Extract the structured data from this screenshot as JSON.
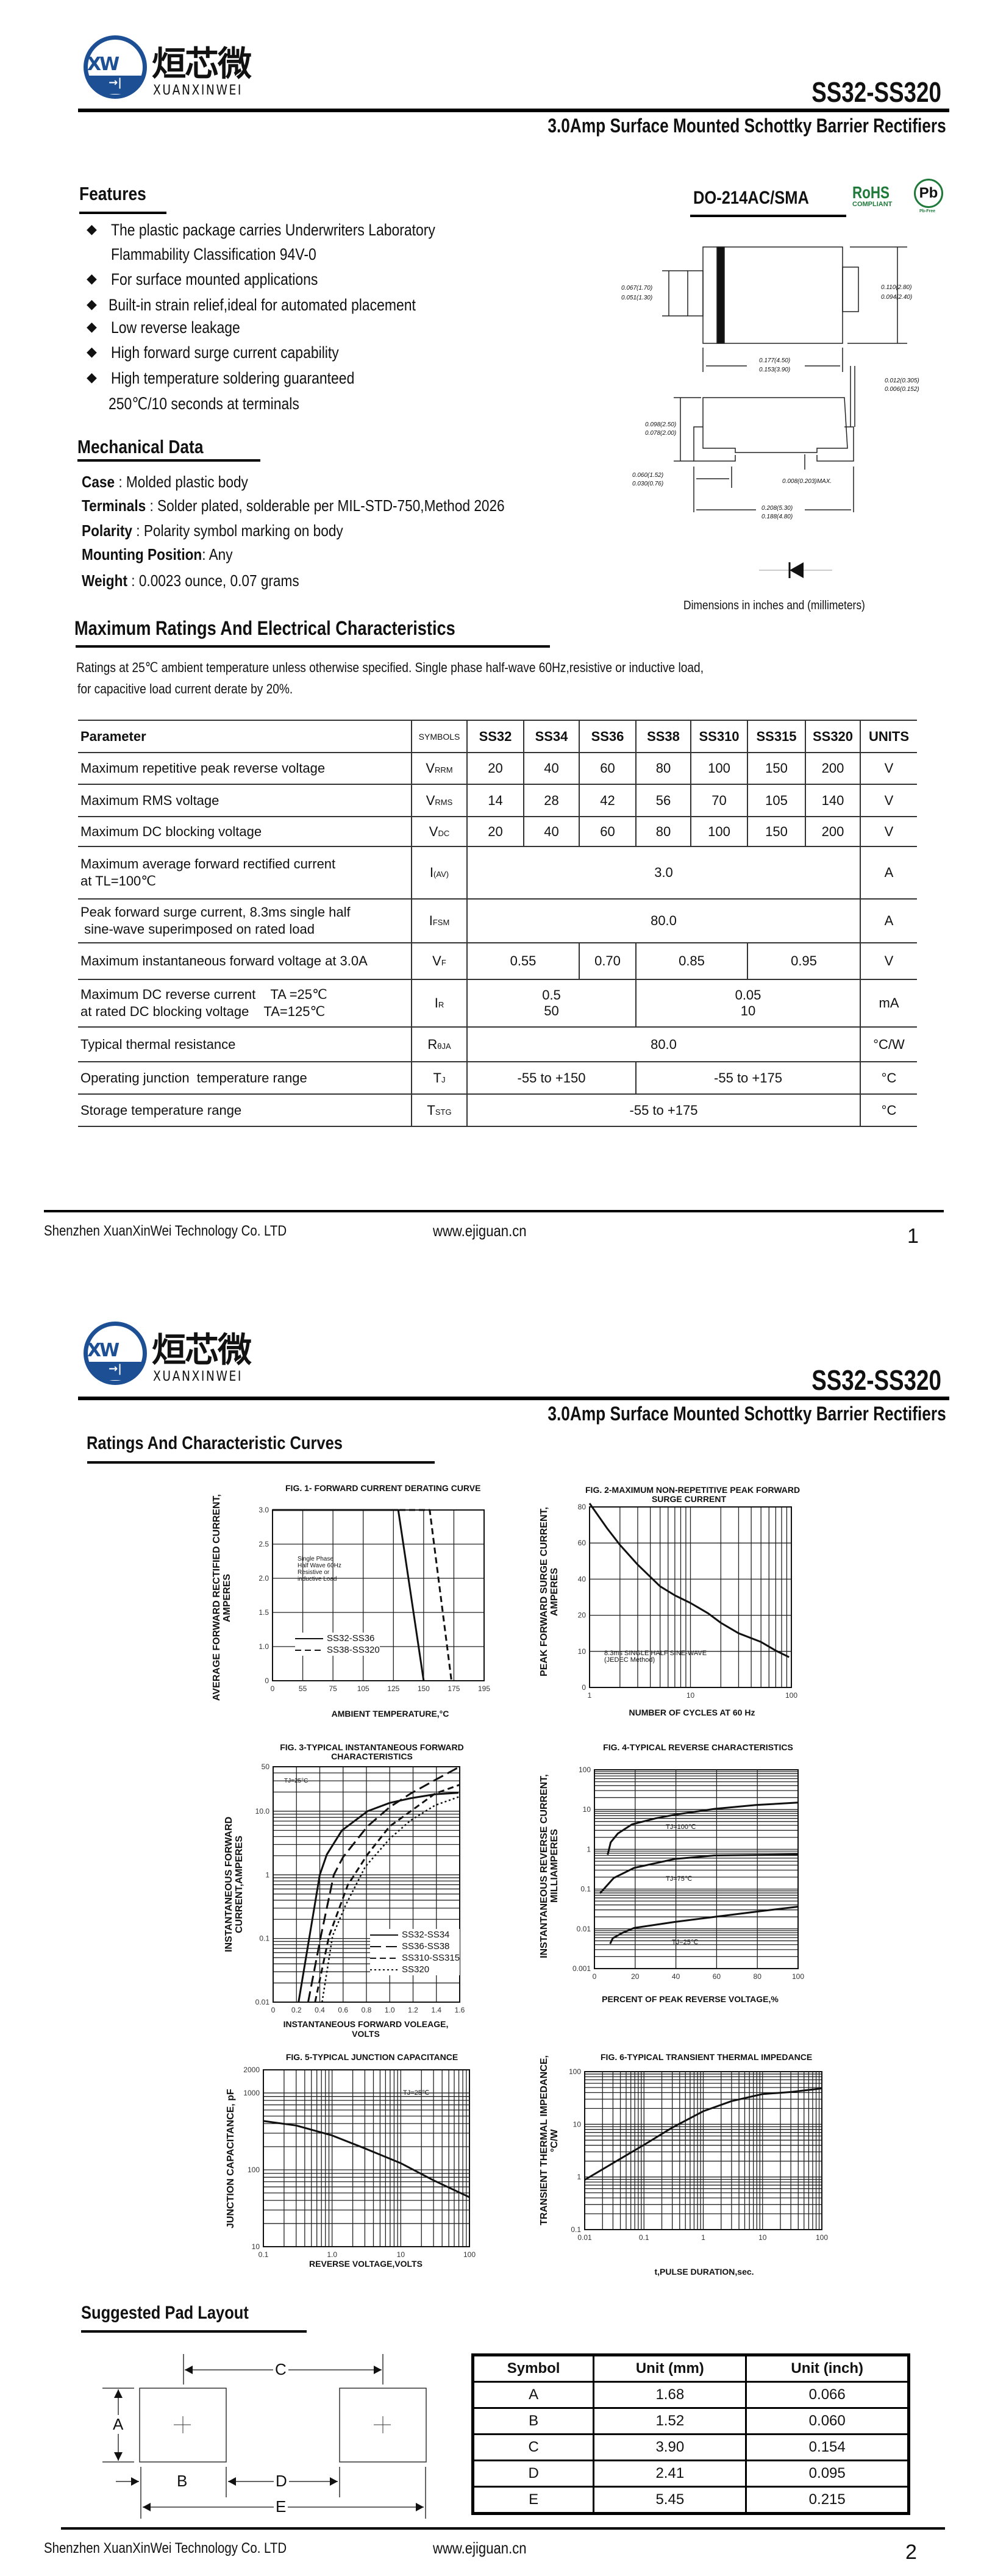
{
  "logo": {
    "cn": "烜芯微",
    "en": "XUANXINWEI",
    "mark": "XW"
  },
  "header": {
    "model": "SS32-SS320",
    "subtitle": "3.0Amp Surface Mounted Schottky Barrier Rectifiers"
  },
  "features": {
    "title": "Features",
    "items": [
      "The plastic package carries Underwriters Laboratory",
      "Flammability Classification 94V-0",
      "For surface mounted applications",
      "Built-in strain relief,ideal for automated placement",
      "Low reverse leakage",
      "High forward surge current capability",
      "High temperature soldering guaranteed",
      "250℃/10 seconds at terminals"
    ]
  },
  "mechanical": {
    "title": "Mechanical  Data",
    "items": [
      {
        "label": "Case",
        "value": " : Molded plastic body"
      },
      {
        "label": "Terminals",
        "value": " : Solder plated, solderable per MIL-STD-750,Method 2026"
      },
      {
        "label": "Polarity",
        "value": " : Polarity symbol  marking on body"
      },
      {
        "label": "Mounting Position",
        "value": ": Any"
      },
      {
        "label": "Weight",
        "value": " : 0.0023 ounce, 0.07 grams"
      }
    ]
  },
  "package": {
    "name": "DO-214AC/SMA",
    "rohs": "RoHS",
    "rohs_sub": "COMPLIANT",
    "pb": "Pb",
    "pb_sub": "Pb-Free",
    "dims": {
      "lead_h_max": "0.067(1.70)",
      "lead_h_min": "0.051(1.30)",
      "body_h_max": "0.110(2.80)",
      "body_h_min": "0.094(2.40)",
      "body_w_max": "0.177(4.50)",
      "body_w_min": "0.153(3.90)",
      "lead_t_max": "0.012(0.305)",
      "lead_t_min": "0.006(0.152)",
      "height_max": "0.098(2.50)",
      "height_min": "0.078(2.00)",
      "foot_max": "0.060(1.52)",
      "foot_min": "0.030(0.76)",
      "standoff": "0.008(0.203)MAX.",
      "total_max": "0.208(5.30)",
      "total_min": "0.188(4.80)"
    },
    "dims_note": "Dimensions in inches and (millimeters)"
  },
  "ratings": {
    "title": "Maximum Ratings And Electrical Characteristics",
    "note1": "Ratings at 25℃ ambient temperature unless otherwise specified. Single phase half-wave 60Hz,resistive or inductive load,",
    "note2": "for capacitive load current derate by 20%.",
    "headers": [
      "Parameter",
      "SYMBOLS",
      "SS32",
      "SS34",
      "SS36",
      "SS38",
      "SS310",
      "SS315",
      "SS320",
      "UNITS"
    ],
    "rows": [
      {
        "param": [
          "Maximum repetitive peak reverse voltage"
        ],
        "sym": "V",
        "sub": "RRM",
        "cells": [
          {
            "t": "20",
            "s": 1
          },
          {
            "t": "40",
            "s": 1
          },
          {
            "t": "60",
            "s": 1
          },
          {
            "t": "80",
            "s": 1
          },
          {
            "t": "100",
            "s": 1
          },
          {
            "t": "150",
            "s": 1
          },
          {
            "t": "200",
            "s": 1
          }
        ],
        "unit": "V"
      },
      {
        "param": [
          "Maximum RMS voltage"
        ],
        "sym": "V",
        "sub": "RMS",
        "cells": [
          {
            "t": "14",
            "s": 1
          },
          {
            "t": "28",
            "s": 1
          },
          {
            "t": "42",
            "s": 1
          },
          {
            "t": "56",
            "s": 1
          },
          {
            "t": "70",
            "s": 1
          },
          {
            "t": "105",
            "s": 1
          },
          {
            "t": "140",
            "s": 1
          }
        ],
        "unit": "V"
      },
      {
        "param": [
          "Maximum DC blocking voltage"
        ],
        "sym": "V",
        "sub": "DC",
        "cells": [
          {
            "t": "20",
            "s": 1
          },
          {
            "t": "40",
            "s": 1
          },
          {
            "t": "60",
            "s": 1
          },
          {
            "t": "80",
            "s": 1
          },
          {
            "t": "100",
            "s": 1
          },
          {
            "t": "150",
            "s": 1
          },
          {
            "t": "200",
            "s": 1
          }
        ],
        "unit": "V"
      },
      {
        "param": [
          "Maximum average forward rectified current",
          "at TL=100℃"
        ],
        "sym": "I",
        "sub": "(AV)",
        "cells": [
          {
            "t": "3.0",
            "s": 7
          }
        ],
        "unit": "A"
      },
      {
        "param": [
          "Peak forward surge current, 8.3ms single half",
          " sine-wave superimposed on rated load"
        ],
        "sym": "I",
        "sub": "FSM",
        "cells": [
          {
            "t": "80.0",
            "s": 7
          }
        ],
        "unit": "A"
      },
      {
        "param": [
          "Maximum instantaneous forward voltage at 3.0A"
        ],
        "sym": "V",
        "sub": "F",
        "cells": [
          {
            "t": "0.55",
            "s": 2
          },
          {
            "t": "0.70",
            "s": 1
          },
          {
            "t": "0.85",
            "s": 2
          },
          {
            "t": "0.95",
            "s": 2
          }
        ],
        "unit": "V"
      },
      {
        "param": [
          "Maximum DC reverse current    TA =25℃",
          "at rated DC blocking voltage    TA=125℃"
        ],
        "sym": "I",
        "sub": "R",
        "cells": [
          {
            "t": "0.5\n50",
            "s": 3
          },
          {
            "t": "0.05\n10",
            "s": 4
          }
        ],
        "unit": "mA"
      },
      {
        "param": [
          "Typical thermal resistance"
        ],
        "sym": "R",
        "sub": "θJA",
        "cells": [
          {
            "t": "80.0",
            "s": 7
          }
        ],
        "unit": "°C/W"
      },
      {
        "param": [
          "Operating junction  temperature range"
        ],
        "sym": "T",
        "sub": "J",
        "cells": [
          {
            "t": "-55 to +150",
            "s": 3
          },
          {
            "t": "-55 to +175",
            "s": 4
          }
        ],
        "unit": "°C"
      },
      {
        "param": [
          "Storage temperature range"
        ],
        "sym": "T",
        "sub": "STG",
        "cells": [
          {
            "t": "-55 to +175",
            "s": 7
          }
        ],
        "unit": "°C"
      }
    ]
  },
  "footer": {
    "company": "Shenzhen XuanXinWei Technology Co. LTD",
    "website": "www.ejiguan.cn",
    "page1": "1",
    "page2": "2"
  },
  "curves": {
    "title": "Ratings And  Characteristic Curves"
  },
  "chart_data": [
    {
      "id": "fig1",
      "type": "line",
      "title": [
        "FIG. 1- FORWARD CURRENT DERATING CURVE"
      ],
      "xlabel": [
        "AMBIENT TEMPERATURE,°C"
      ],
      "ylabel": [
        "AVERAGE FORWARD RECTIFIED CURRENT,",
        "AMPERES"
      ],
      "x": {
        "scale": "ticks",
        "ticks": [
          0,
          55,
          75,
          105,
          125,
          150,
          175,
          195
        ],
        "tick_labels": [
          "0",
          "55",
          "75",
          "105",
          "125",
          "150",
          "175",
          "195"
        ]
      },
      "y": {
        "scale": "ticks",
        "ticks": [
          0,
          1.0,
          1.5,
          2.0,
          2.5,
          3.0
        ],
        "tick_labels": [
          "0",
          "1.0",
          "1.5",
          "2.0",
          "2.5",
          "3.0"
        ]
      },
      "grid": true,
      "legend": "bottom-left",
      "annotations": [
        "Single Phase\nHalf Wave 60Hz\nResistive or\ninductive Load"
      ],
      "series": [
        {
          "name": "SS32-SS36",
          "style": "solid",
          "x": [
            0,
            129,
            150
          ],
          "y": [
            3.0,
            3.0,
            0
          ]
        },
        {
          "name": "SS38-SS320",
          "style": "dashed",
          "x": [
            0,
            155,
            173
          ],
          "y": [
            3.0,
            3.0,
            0
          ]
        }
      ]
    },
    {
      "id": "fig2",
      "type": "line",
      "title": [
        "FIG. 2-MAXIMUM NON-REPETITIVE PEAK FORWARD",
        "SURGE CURRENT"
      ],
      "xlabel": [
        "NUMBER OF CYCLES AT 60 Hz"
      ],
      "ylabel": [
        "PEAK  FORWARD SURGE CURRENT,",
        "AMPERES"
      ],
      "x": {
        "scale": "log",
        "range": [
          1,
          100
        ],
        "ticks": [
          1,
          10,
          100
        ],
        "tick_labels": [
          "1",
          "10",
          "100"
        ],
        "minor_grid": true
      },
      "y": {
        "scale": "ticks",
        "ticks": [
          0,
          10,
          20,
          40,
          60,
          80
        ],
        "tick_labels": [
          "0",
          "10",
          "20",
          "40",
          "60",
          "80"
        ]
      },
      "grid": true,
      "annotations": [
        "8.3ms SINGLE HALF SINE-WAVE\n(JEDEC Method)"
      ],
      "series": [
        {
          "style": "solid",
          "x": [
            1,
            1.5,
            2,
            3,
            5,
            7,
            10,
            15,
            20,
            30,
            50,
            70,
            95
          ],
          "y": [
            82,
            68,
            59,
            48,
            36,
            31,
            26.8,
            21,
            17.9,
            15,
            12.6,
            10.2,
            8.4
          ]
        }
      ]
    },
    {
      "id": "fig3",
      "type": "line",
      "title": [
        "FIG. 3-TYPICAL INSTANTANEOUS FORWARD",
        "CHARACTERISTICS"
      ],
      "xlabel": [
        "INSTANTANEOUS FORWARD VOLEAGE,",
        "VOLTS"
      ],
      "ylabel": [
        "INSTANTANEOUS FORWARD",
        "CURRENT,AMPERES"
      ],
      "x": {
        "scale": "linear",
        "range": [
          0,
          1.6
        ],
        "ticks": [
          0,
          0.2,
          0.4,
          0.6,
          0.8,
          1.0,
          1.2,
          1.4,
          1.6
        ],
        "tick_labels": [
          "0",
          "0.2",
          "0.4",
          "0.6",
          "0.8",
          "1.0",
          "1.2",
          "1.4",
          "1.6"
        ]
      },
      "y": {
        "scale": "log",
        "range": [
          0.01,
          50
        ],
        "ticks": [
          0.01,
          0.1,
          1,
          10,
          50
        ],
        "tick_labels": [
          "0.01",
          "0.1",
          "1",
          "10.0",
          "50"
        ],
        "minor_grid": true
      },
      "grid": true,
      "legend": "bottom-right",
      "annotations": [
        "TJ=25°C"
      ],
      "series": [
        {
          "name": "SS32-SS34",
          "style": "solid",
          "x": [
            0.218,
            0.3,
            0.4,
            0.46,
            0.59,
            0.81,
            1.0,
            1.18,
            1.39,
            1.59
          ],
          "y": [
            0.01,
            0.08,
            1,
            2.08,
            5,
            10,
            13.5,
            16,
            18.5,
            19.5
          ]
        },
        {
          "name": "SS36-SS38",
          "style": "longdash",
          "x": [
            0.3,
            0.41,
            0.52,
            0.6,
            0.81,
            1.0,
            1.18,
            1.39,
            1.6
          ],
          "y": [
            0.01,
            0.11,
            1,
            1.9,
            5.8,
            11.6,
            19,
            31,
            50
          ]
        },
        {
          "name": "SS310-SS315",
          "style": "dashed",
          "x": [
            0.36,
            0.48,
            0.64,
            0.81,
            1.0,
            1.18,
            1.39,
            1.6
          ],
          "y": [
            0.01,
            0.11,
            0.69,
            2.1,
            5.8,
            10,
            19,
            26
          ]
        },
        {
          "name": "SS320",
          "style": "dotted",
          "x": [
            0.42,
            0.51,
            0.62,
            0.79,
            1.0,
            1.18,
            1.39,
            1.6
          ],
          "y": [
            0.01,
            0.11,
            0.33,
            1.34,
            3.7,
            7.2,
            12.4,
            17
          ]
        }
      ]
    },
    {
      "id": "fig4",
      "type": "line",
      "title": [
        "FIG. 4-TYPICAL REVERSE CHARACTERISTICS"
      ],
      "xlabel": [
        "PERCENT OF PEAK REVERSE VOLTAGE,%"
      ],
      "ylabel": [
        "INSTANTANEOUS REVERSE CURRENT,",
        "MILLIAMPERES"
      ],
      "x": {
        "scale": "linear",
        "range": [
          0,
          100
        ],
        "ticks": [
          0,
          20,
          40,
          60,
          80,
          100
        ],
        "tick_labels": [
          "0",
          "20",
          "40",
          "60",
          "80",
          "100"
        ]
      },
      "y": {
        "scale": "log",
        "range": [
          0.001,
          100
        ],
        "ticks": [
          0.001,
          0.01,
          0.1,
          1,
          10,
          100
        ],
        "tick_labels": [
          "0.001",
          "0.01",
          "0.1",
          "1",
          "10",
          "100"
        ],
        "minor_grid": true
      },
      "grid": true,
      "annotations": [
        "TJ=100℃",
        "TJ=75℃",
        "TJ=25℃"
      ],
      "series": [
        {
          "label": "TJ=100℃",
          "style": "solid",
          "x": [
            6.5,
            8,
            11.5,
            18.5,
            30,
            39.4,
            58.9,
            79.3,
            100
          ],
          "y": [
            0.73,
            1.5,
            2.5,
            4.25,
            6,
            7.4,
            10.4,
            13,
            15
          ]
        },
        {
          "label": "TJ=75℃",
          "style": "solid",
          "x": [
            2.7,
            9.5,
            19.5,
            39.4,
            58.9,
            100
          ],
          "y": [
            0.078,
            0.19,
            0.34,
            0.57,
            0.7,
            0.74
          ]
        },
        {
          "label": "TJ=25℃",
          "style": "solid",
          "x": [
            7.7,
            9,
            13.5,
            19.5,
            39.4,
            58.9,
            79.3,
            100
          ],
          "y": [
            0.0042,
            0.0058,
            0.0078,
            0.0105,
            0.0149,
            0.02,
            0.027,
            0.036
          ]
        }
      ]
    },
    {
      "id": "fig5",
      "type": "line",
      "title": [
        "FIG. 5-TYPICAL JUNCTION CAPACITANCE"
      ],
      "xlabel": [
        "REVERSE VOLTAGE,VOLTS"
      ],
      "ylabel": [
        "JUNCTION CAPACITANCE, pF"
      ],
      "x": {
        "scale": "log",
        "range": [
          0.1,
          100
        ],
        "ticks": [
          0.1,
          1,
          10,
          100
        ],
        "tick_labels": [
          "0.1",
          "1.0",
          "10",
          "100"
        ],
        "minor_grid": true
      },
      "y": {
        "scale": "log",
        "range": [
          10,
          2000
        ],
        "ticks": [
          10,
          100,
          1000,
          2000
        ],
        "tick_labels": [
          "10",
          "100",
          "1000",
          "2000"
        ],
        "minor_grid": true
      },
      "grid": true,
      "annotations": [
        "TJ=25℃"
      ],
      "series": [
        {
          "style": "solid",
          "x": [
            0.1,
            0.3,
            1,
            3,
            10,
            30,
            100
          ],
          "y": [
            432,
            377,
            280,
            190,
            122,
            73,
            44
          ]
        }
      ]
    },
    {
      "id": "fig6",
      "type": "line",
      "title": [
        "FIG. 6-TYPICAL TRANSIENT THERMAL IMPEDANCE"
      ],
      "xlabel": [
        "t,PULSE DURATION,sec."
      ],
      "ylabel": [
        "TRANSIENT THERMAL IMPEDANCE,",
        "°C/W"
      ],
      "x": {
        "scale": "log",
        "range": [
          0.01,
          100
        ],
        "ticks": [
          0.01,
          0.1,
          1,
          10,
          100
        ],
        "tick_labels": [
          "0.01",
          "0.1",
          "1",
          "10",
          "100"
        ],
        "minor_grid": true
      },
      "y": {
        "scale": "log",
        "range": [
          0.1,
          100
        ],
        "ticks": [
          0.1,
          1,
          10,
          100
        ],
        "tick_labels": [
          "0.1",
          "1",
          "10",
          "100"
        ],
        "minor_grid": true
      },
      "grid": true,
      "series": [
        {
          "style": "solid",
          "x": [
            0.01,
            0.03,
            0.1,
            0.3,
            1,
            3,
            10,
            30,
            100
          ],
          "y": [
            0.88,
            1.83,
            4.07,
            8.67,
            17.7,
            27.6,
            37.6,
            41,
            48
          ]
        }
      ]
    }
  ],
  "pad_layout": {
    "title": "Suggested Pad Layout",
    "labels": {
      "A": "A",
      "B": "B",
      "C": "C",
      "D": "D",
      "E": "E"
    },
    "headers": [
      "Symbol",
      "Unit (mm)",
      "Unit (inch)"
    ],
    "rows": [
      [
        "A",
        "1.68",
        "0.066"
      ],
      [
        "B",
        "1.52",
        "0.060"
      ],
      [
        "C",
        "3.90",
        "0.154"
      ],
      [
        "D",
        "2.41",
        "0.095"
      ],
      [
        "E",
        "5.45",
        "0.215"
      ]
    ]
  }
}
